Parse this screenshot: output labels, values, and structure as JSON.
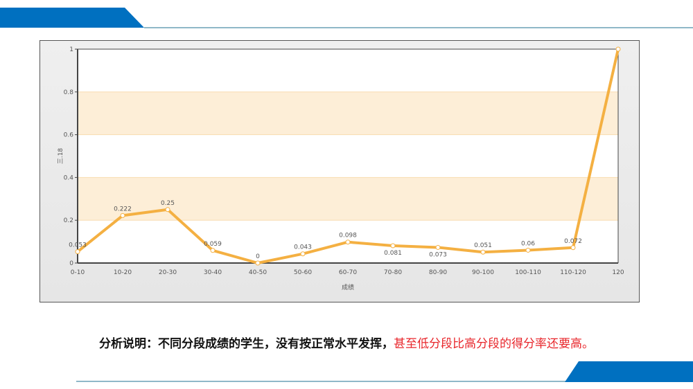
{
  "colors": {
    "brand_blue": "#0070c0",
    "rule": "#8fb8c8",
    "line": "#f4b042",
    "band": "#fdeed7"
  },
  "chart_data": {
    "type": "line",
    "title": "",
    "xlabel": "成绩",
    "ylabel": "三.18",
    "categories": [
      "0-10",
      "10-20",
      "20-30",
      "30-40",
      "40-50",
      "50-60",
      "60-70",
      "70-80",
      "80-90",
      "90-100",
      "100-110",
      "110-120",
      "120"
    ],
    "values": [
      0.053,
      0.222,
      0.25,
      0.059,
      0,
      0.043,
      0.098,
      0.081,
      0.073,
      0.051,
      0.06,
      0.072,
      1
    ],
    "data_labels": [
      "0.053",
      "0.222",
      "0.25",
      "0.059",
      "0",
      "0.043",
      "0.098",
      "0.081",
      "0.073",
      "0.051",
      "0.06",
      "0.072",
      ""
    ],
    "ylim": [
      0,
      1
    ],
    "yticks": [
      "0",
      "0.2",
      "0.4",
      "0.6",
      "0.8",
      "1"
    ],
    "shaded_bands": [
      [
        0.2,
        0.4
      ],
      [
        0.6,
        0.8
      ]
    ],
    "grid": false,
    "legend": "none"
  },
  "caption": {
    "black": "分析说明：不同分段成绩的学生，没有按正常水平发挥，",
    "red": "甚至低分段比高分段的得分率还要高。"
  }
}
